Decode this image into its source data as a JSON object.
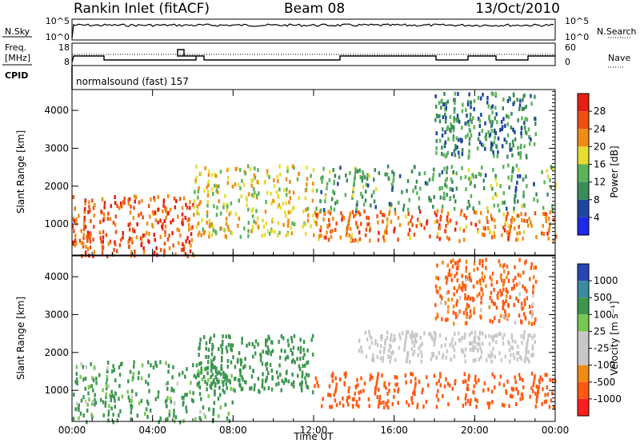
{
  "header": {
    "station": "Rankin Inlet (fitACF)",
    "beam": "Beam 08",
    "date": "13/Oct/2010"
  },
  "status_panels": {
    "nsky_label": "N.Sky",
    "nsky_ticks": [
      "10^5",
      "10^0"
    ],
    "nsearch_label": "N.Search",
    "nsearch_ticks": [
      "10^5",
      "10^0"
    ],
    "freq_label_top": "Freq.",
    "freq_label_unit": "[MHz]",
    "freq_ticks": [
      "18",
      "8"
    ],
    "nave_label": "Nave",
    "nave_ticks": [
      "60",
      "0"
    ],
    "cpid_label": "CPID",
    "cpid_text": "normalsound (fast) 157"
  },
  "colors": {
    "power": [
      "#1e28e6",
      "#1e46a0",
      "#3c8c5a",
      "#5ab45a",
      "#e6dc32",
      "#f08c14",
      "#f05014",
      "#e61e14"
    ],
    "velocity": [
      "#ff1e1e",
      "#ff5a14",
      "#f08c14",
      "#c8c8c8",
      "#c8c8c8",
      "#78c850",
      "#3c9650",
      "#3c8ca0",
      "#2846b4"
    ]
  },
  "chart_data": [
    {
      "type": "heatmap",
      "name": "power",
      "ylabel": "Slant Range [km]",
      "xlabel": "",
      "xlim": [
        "00:00",
        "24:00"
      ],
      "ylim": [
        180,
        4550
      ],
      "x_tick_labels": [
        "00:00",
        "04:00",
        "08:00",
        "12:00",
        "16:00",
        "20:00",
        "00:00"
      ],
      "y_tick_labels": [
        "1000",
        "2000",
        "3000",
        "4000"
      ],
      "colorbar": {
        "label": "Power [dB]",
        "tick_labels": [
          "4",
          "8",
          "12",
          "16",
          "20",
          "24",
          "28"
        ],
        "range": [
          0,
          32
        ]
      },
      "description_regions": [
        {
          "time_h": [
            0,
            6
          ],
          "range_km": [
            200,
            1800
          ],
          "value": 26
        },
        {
          "time_h": [
            6,
            12
          ],
          "range_km": [
            700,
            2600
          ],
          "value": 18
        },
        {
          "time_h": [
            12,
            24
          ],
          "range_km": [
            600,
            1400
          ],
          "value": 24
        },
        {
          "time_h": [
            12,
            24
          ],
          "range_km": [
            1400,
            2600
          ],
          "value": 12
        },
        {
          "time_h": [
            18,
            23
          ],
          "range_km": [
            2800,
            4500
          ],
          "value": 10
        }
      ]
    },
    {
      "type": "heatmap",
      "name": "velocity",
      "ylabel": "Slant Range [km]",
      "xlabel": "Time UT",
      "xlim": [
        "00:00",
        "24:00"
      ],
      "ylim": [
        180,
        4550
      ],
      "x_tick_labels": [
        "00:00",
        "04:00",
        "08:00",
        "12:00",
        "16:00",
        "20:00",
        "00:00"
      ],
      "y_tick_labels": [
        "1000",
        "2000",
        "3000",
        "4000"
      ],
      "colorbar": {
        "label": "Velocity [m s⁻¹]",
        "tick_labels": [
          "1000",
          "500",
          "100",
          "25",
          "-25",
          "-100",
          "-500",
          "-1000"
        ]
      },
      "description_regions": [
        {
          "time_h": [
            0,
            8
          ],
          "range_km": [
            200,
            1800
          ],
          "value": 200
        },
        {
          "time_h": [
            6,
            12
          ],
          "range_km": [
            1000,
            2500
          ],
          "value": 300
        },
        {
          "time_h": [
            12,
            24
          ],
          "range_km": [
            600,
            1500
          ],
          "value": -300
        },
        {
          "time_h": [
            14,
            23
          ],
          "range_km": [
            1800,
            2600
          ],
          "value": 0
        },
        {
          "time_h": [
            18,
            23
          ],
          "range_km": [
            2800,
            4500
          ],
          "value": -200
        }
      ]
    }
  ]
}
